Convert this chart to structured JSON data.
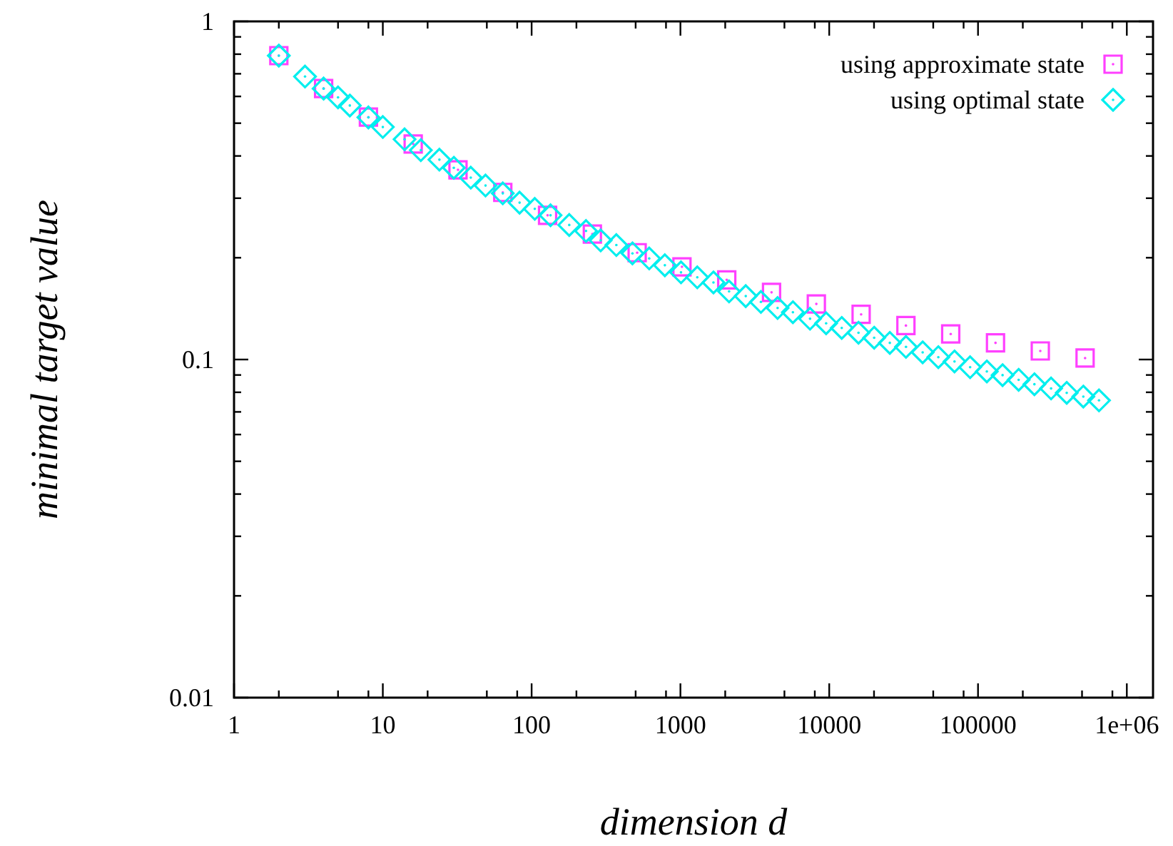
{
  "chart_data": {
    "type": "scatter",
    "xlabel": "dimension d",
    "ylabel": "minimal target value",
    "log": "xy",
    "legend": "top right",
    "grid": false,
    "xlim": [
      1,
      1500000
    ],
    "ylim": [
      0.01,
      1
    ],
    "xticks": [
      1,
      {
        "value": 2,
        "label": null
      },
      {
        "value": 5,
        "label": null
      },
      {
        "value": 8,
        "label": null
      },
      10,
      {
        "value": 20,
        "label": null
      },
      {
        "value": 50,
        "label": null
      },
      {
        "value": 80,
        "label": null
      },
      100,
      {
        "value": 200,
        "label": null
      },
      {
        "value": 500,
        "label": null
      },
      {
        "value": 800,
        "label": null
      },
      1000,
      {
        "value": 2000,
        "label": null
      },
      {
        "value": 5000,
        "label": null
      },
      {
        "value": 8000,
        "label": null
      },
      10000,
      {
        "value": 20000,
        "label": null
      },
      {
        "value": 50000,
        "label": null
      },
      {
        "value": 80000,
        "label": null
      },
      100000,
      {
        "value": 200000,
        "label": null
      },
      {
        "value": 500000,
        "label": null
      },
      {
        "value": 800000,
        "label": null
      },
      {
        "value": 1000000,
        "label": "1e+06"
      }
    ],
    "yticks": [
      0.01,
      {
        "value": 0.02,
        "label": null
      },
      {
        "value": 0.03,
        "label": null
      },
      {
        "value": 0.04,
        "label": null
      },
      {
        "value": 0.05,
        "label": null
      },
      {
        "value": 0.06,
        "label": null
      },
      {
        "value": 0.07,
        "label": null
      },
      {
        "value": 0.08,
        "label": null
      },
      {
        "value": 0.09,
        "label": null
      },
      0.1,
      {
        "value": 0.2,
        "label": null
      },
      {
        "value": 0.3,
        "label": null
      },
      {
        "value": 0.4,
        "label": null
      },
      {
        "value": 0.5,
        "label": null
      },
      {
        "value": 0.6,
        "label": null
      },
      {
        "value": 0.7,
        "label": null
      },
      {
        "value": 0.8,
        "label": null
      },
      {
        "value": 0.9,
        "label": null
      },
      1
    ],
    "series": [
      {
        "name": "using approximate state",
        "color": "#ff40ff",
        "marker": "square",
        "x": [
          2,
          4,
          8,
          16,
          32,
          64,
          128,
          256,
          512,
          1024,
          2048,
          4096,
          8192,
          16384,
          32768,
          65536,
          131072,
          262144,
          524288
        ],
        "values": [
          0.792,
          0.633,
          0.521,
          0.434,
          0.364,
          0.312,
          0.267,
          0.235,
          0.207,
          0.188,
          0.172,
          0.158,
          0.146,
          0.136,
          0.126,
          0.119,
          0.112,
          0.106,
          0.101
        ]
      },
      {
        "name": "using optimal state",
        "color": "#00eeee",
        "marker": "diamond",
        "x": [
          2,
          3,
          4,
          5,
          6,
          8,
          10,
          14,
          18,
          24,
          30,
          39,
          49,
          64,
          83,
          105,
          134,
          179,
          232,
          291,
          371,
          476,
          617,
          786,
          1009,
          1298,
          1667,
          2123,
          2748,
          3475,
          4498,
          5700,
          7430,
          9530,
          12140,
          15730,
          20050,
          25540,
          32800,
          42460,
          54100,
          69500,
          88500,
          114600,
          146200,
          187500,
          239300,
          309700,
          394500,
          510200,
          650200
        ],
        "values": [
          0.792,
          0.687,
          0.633,
          0.596,
          0.564,
          0.52,
          0.487,
          0.448,
          0.416,
          0.39,
          0.369,
          0.345,
          0.327,
          0.31,
          0.291,
          0.279,
          0.267,
          0.25,
          0.24,
          0.225,
          0.218,
          0.206,
          0.199,
          0.19,
          0.181,
          0.175,
          0.169,
          0.159,
          0.154,
          0.148,
          0.142,
          0.138,
          0.132,
          0.128,
          0.124,
          0.12,
          0.116,
          0.112,
          0.109,
          0.105,
          0.1016,
          0.0987,
          0.0949,
          0.0922,
          0.0899,
          0.0871,
          0.0845,
          0.0821,
          0.0797,
          0.0777,
          0.0757
        ]
      }
    ]
  }
}
